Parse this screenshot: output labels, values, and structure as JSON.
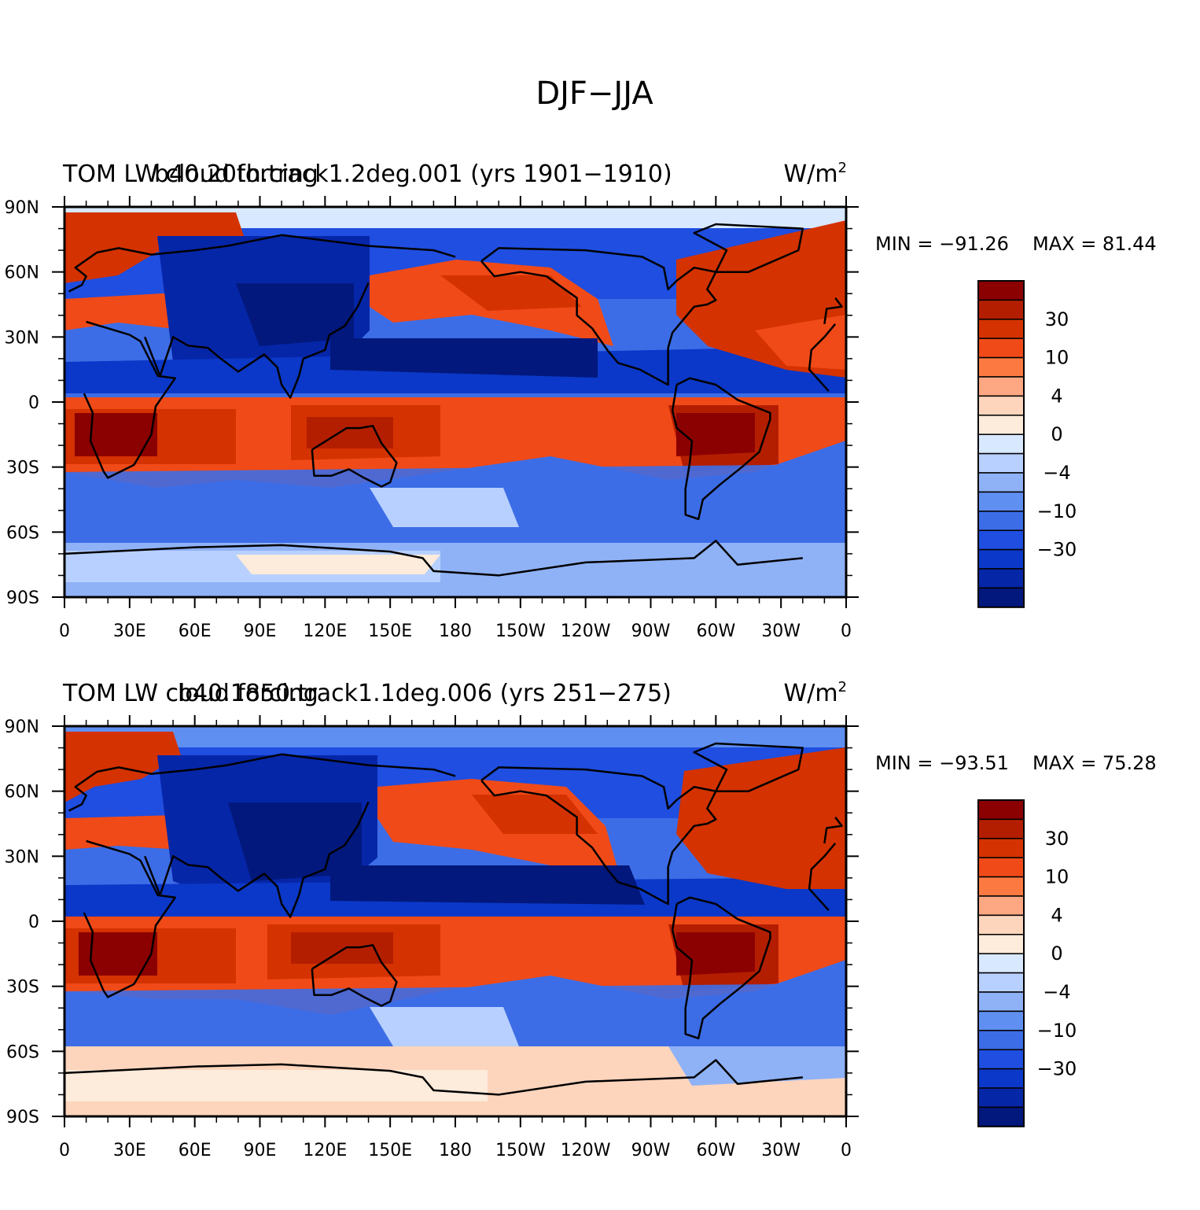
{
  "figure": {
    "title": "DJF−JJA"
  },
  "chart_data": [
    {
      "type": "heatmap",
      "variable_label": "TOM LW cloud forcing",
      "case_label": "b40.20th.track1.2deg.001 (yrs 1901−1910)",
      "units": "W/m",
      "units_sup": "2",
      "min_label": "MIN = −91.26",
      "max_label": "MAX =  81.44",
      "min": -91.26,
      "max": 81.44,
      "xlabels": [
        "0",
        "30E",
        "60E",
        "90E",
        "120E",
        "150E",
        "180",
        "150W",
        "120W",
        "90W",
        "60W",
        "30W",
        "0"
      ],
      "ylabels": [
        "90N",
        "60N",
        "30N",
        "0",
        "30S",
        "60S",
        "90S"
      ],
      "xlim": [
        0,
        360
      ],
      "ylim": [
        -90,
        90
      ]
    },
    {
      "type": "heatmap",
      "variable_label": "TOM LW cloud forcing",
      "case_label": "b40.1850.track1.1deg.006 (yrs 251−275)",
      "units": "W/m",
      "units_sup": "2",
      "min_label": "MIN = −93.51",
      "max_label": "MAX =  75.28",
      "min": -93.51,
      "max": 75.28,
      "xlabels": [
        "0",
        "30E",
        "60E",
        "90E",
        "120E",
        "150E",
        "180",
        "150W",
        "120W",
        "90W",
        "60W",
        "30W",
        "0"
      ],
      "ylabels": [
        "90N",
        "60N",
        "30N",
        "0",
        "30S",
        "60S",
        "90S"
      ],
      "xlim": [
        0,
        360
      ],
      "ylim": [
        -90,
        90
      ]
    }
  ],
  "colorbar": {
    "colors": [
      "#8b0000",
      "#b41e00",
      "#d43200",
      "#f04a18",
      "#fc7a42",
      "#fda882",
      "#fdd5bc",
      "#fdebdb",
      "#d8e8ff",
      "#b8d0ff",
      "#8fb2f6",
      "#5f8ff0",
      "#3d6de6",
      "#1f4ee0",
      "#0b38c8",
      "#0626a8",
      "#02187c"
    ],
    "labels": [
      "30",
      "10",
      "4",
      "0",
      "−4",
      "−10",
      "−30"
    ],
    "label_after_index": [
      1,
      3,
      5,
      7,
      9,
      11,
      13
    ]
  }
}
